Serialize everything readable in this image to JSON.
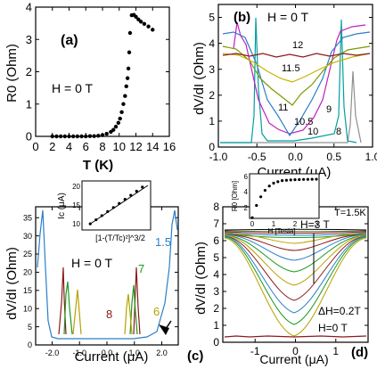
{
  "chart_data": [
    {
      "panel": "(a)",
      "type": "scatter",
      "xlabel": "T (K)",
      "ylabel": "R0 (Ohm)",
      "annotation": "H = 0 T",
      "xlim": [
        0,
        16
      ],
      "ylim": [
        0,
        4
      ],
      "xticks": [
        "0",
        "2",
        "4",
        "6",
        "8",
        "10",
        "12",
        "14",
        "16"
      ],
      "yticks": [
        "0",
        "1",
        "2",
        "3",
        "4"
      ],
      "series": [
        {
          "color": "#000000",
          "x": [
            2.0,
            2.5,
            3.0,
            3.5,
            4.0,
            4.5,
            5.0,
            5.5,
            6.0,
            6.5,
            7.0,
            7.5,
            8.0,
            8.5,
            9.0,
            9.3,
            9.6,
            9.9,
            10.1,
            10.3,
            10.5,
            10.7,
            10.85,
            11.0,
            11.1,
            11.2,
            11.3,
            11.5,
            11.75,
            12.0,
            12.3,
            12.6,
            13.0,
            13.5,
            14.0
          ],
          "y": [
            0.0,
            0.0,
            0.0,
            0.0,
            0.0,
            0.0,
            0.0,
            0.0,
            0.0,
            0.01,
            0.01,
            0.02,
            0.04,
            0.08,
            0.14,
            0.2,
            0.3,
            0.42,
            0.55,
            0.75,
            1.0,
            1.25,
            1.55,
            1.8,
            2.1,
            2.6,
            3.2,
            3.75,
            3.76,
            3.7,
            3.62,
            3.55,
            3.48,
            3.4,
            3.3
          ]
        }
      ]
    },
    {
      "panel": "(b)",
      "type": "line",
      "xlabel": "Current (μA)",
      "ylabel": "dV/dI (Ohm)",
      "annotation": "H = 0 T",
      "xlim": [
        -1.0,
        1.0
      ],
      "ylim": [
        0,
        5.5
      ],
      "xticks": [
        "-1.0",
        "-0.5",
        "0.0",
        "0.5",
        "1.0"
      ],
      "yticks": [
        "0",
        "1",
        "2",
        "3",
        "4",
        "5"
      ],
      "series": [
        {
          "name": "12",
          "color": "#8b1a1a"
        },
        {
          "name": "11.5",
          "color": "#c8b400"
        },
        {
          "name": "11",
          "color": "#7a9a00"
        },
        {
          "name": "10.5",
          "color": "#2a7fc8"
        },
        {
          "name": "10",
          "color": "#c020c0"
        },
        {
          "name": "9",
          "color": "#00a0a0"
        },
        {
          "name": "8",
          "color": "#909090"
        }
      ]
    },
    {
      "panel": "(c)",
      "type": "line",
      "xlabel": "Current (μA)",
      "ylabel": "dV/dI (Ohm)",
      "annotation": "H = 0 T",
      "xlim": [
        -2.6,
        2.6
      ],
      "ylim": [
        0,
        38
      ],
      "xticks": [
        "-2.0",
        "-1.0",
        "0.0",
        "1.0",
        "2.0"
      ],
      "yticks": [
        "0",
        "5",
        "10",
        "15",
        "20",
        "25",
        "30",
        "35"
      ],
      "series": [
        {
          "name": "1.5",
          "color": "#2a7fc8"
        },
        {
          "name": "6",
          "color": "#b8a000"
        },
        {
          "name": "7",
          "color": "#1a9a1a"
        },
        {
          "name": "8",
          "color": "#8b1a1a"
        }
      ],
      "inset": {
        "type": "scatter",
        "xlabel": "[1-(T/Tc)²]^3/2",
        "ylabel": "Ic (μA)",
        "yticks": [
          "10",
          "15",
          "20"
        ],
        "x": [
          0.05,
          0.15,
          0.25,
          0.35,
          0.45,
          0.55,
          0.65,
          0.75,
          0.85,
          0.95
        ],
        "y": [
          10.5,
          11.5,
          12.5,
          13.5,
          14.5,
          15.5,
          16.5,
          17.5,
          18.5,
          19.5
        ]
      }
    },
    {
      "panel": "(d)",
      "type": "line",
      "xlabel": "Current (μA)",
      "ylabel": "dV/dI (Ohm)",
      "annotations": [
        "T=1.5K",
        "H=3 T",
        "ΔH=0.2T",
        "H=0 T"
      ],
      "xlim": [
        -1.8,
        1.8
      ],
      "ylim": [
        0,
        8
      ],
      "xticks": [
        "-1",
        "0",
        "1"
      ],
      "yticks": [
        "0",
        "1",
        "2",
        "3",
        "4",
        "5",
        "6",
        "7",
        "8"
      ],
      "inset": {
        "type": "scatter",
        "xlabel": "H [Tesla]",
        "ylabel": "R0 [Ohm]",
        "xticks": [
          "0",
          "1",
          "2",
          "3"
        ],
        "yticks": [
          "2",
          "4",
          "6"
        ],
        "x": [
          0.0,
          0.2,
          0.4,
          0.6,
          0.8,
          1.0,
          1.2,
          1.4,
          1.6,
          1.8,
          2.0,
          2.2,
          2.4,
          2.6,
          2.8,
          3.0
        ],
        "y": [
          0.1,
          1.8,
          3.0,
          3.9,
          4.5,
          4.9,
          5.1,
          5.25,
          5.3,
          5.35,
          5.38,
          5.4,
          5.42,
          5.43,
          5.44,
          5.45
        ]
      }
    }
  ],
  "colors": {
    "axis": "#000000",
    "text": "#000000"
  }
}
